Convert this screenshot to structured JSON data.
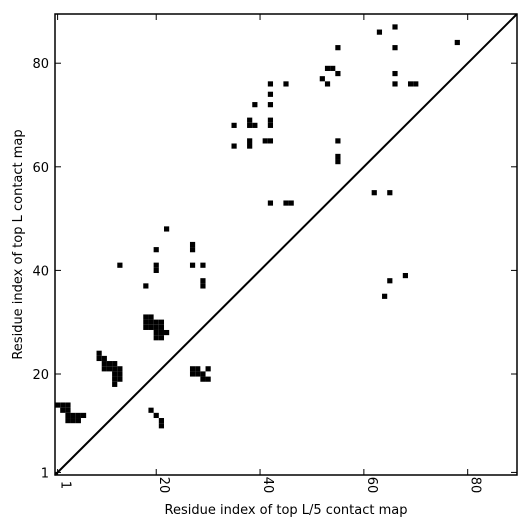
{
  "chart_data": {
    "type": "scatter",
    "xlabel": "Residue index of top L/5 contact map",
    "ylabel": "Residue index of top L contact map",
    "xlim": [
      0.5,
      89.5
    ],
    "ylim": [
      0.5,
      89.5
    ],
    "x_ticks": [
      1,
      20,
      40,
      60,
      80
    ],
    "y_ticks": [
      1,
      20,
      40,
      60,
      80
    ],
    "x_tick_labels": [
      "1",
      "20",
      "40",
      "60",
      "80"
    ],
    "y_tick_labels": [
      "1",
      "20",
      "40",
      "60",
      "80"
    ],
    "grid": false,
    "diagonal": true,
    "marker_color": "#000000",
    "upper_triangle_points": [
      [
        63,
        86
      ],
      [
        66,
        87
      ],
      [
        66,
        83
      ],
      [
        55,
        83
      ],
      [
        78,
        84
      ],
      [
        53,
        79
      ],
      [
        54,
        79
      ],
      [
        55,
        78
      ],
      [
        66,
        78
      ],
      [
        52,
        77
      ],
      [
        42,
        76
      ],
      [
        45,
        76
      ],
      [
        53,
        76
      ],
      [
        66,
        76
      ],
      [
        69,
        76
      ],
      [
        70,
        76
      ],
      [
        42,
        74
      ],
      [
        39,
        72
      ],
      [
        42,
        72
      ],
      [
        38,
        69
      ],
      [
        42,
        69
      ],
      [
        35,
        68
      ],
      [
        38,
        68
      ],
      [
        39,
        68
      ],
      [
        42,
        68
      ],
      [
        38,
        65
      ],
      [
        41,
        65
      ],
      [
        42,
        65
      ],
      [
        55,
        65
      ],
      [
        35,
        64
      ],
      [
        38,
        64
      ],
      [
        55,
        62
      ],
      [
        55,
        61
      ],
      [
        62,
        55
      ],
      [
        65,
        55
      ],
      [
        42,
        53
      ],
      [
        45,
        53
      ],
      [
        46,
        53
      ]
    ],
    "lower_triangle_points": [
      [
        22,
        48
      ],
      [
        20,
        44
      ],
      [
        27,
        45
      ],
      [
        27,
        44
      ],
      [
        13,
        41
      ],
      [
        20,
        41
      ],
      [
        27,
        41
      ],
      [
        29,
        41
      ],
      [
        20,
        40
      ],
      [
        68,
        39
      ],
      [
        29,
        38
      ],
      [
        65,
        38
      ],
      [
        18,
        37
      ],
      [
        29,
        37
      ],
      [
        64,
        35
      ],
      [
        18,
        31
      ],
      [
        19,
        31
      ],
      [
        18,
        30
      ],
      [
        19,
        30
      ],
      [
        20,
        30
      ],
      [
        21,
        30
      ],
      [
        18,
        29
      ],
      [
        19,
        29
      ],
      [
        20,
        29
      ],
      [
        21,
        29
      ],
      [
        20,
        28
      ],
      [
        21,
        28
      ],
      [
        22,
        28
      ],
      [
        20,
        27
      ],
      [
        21,
        27
      ],
      [
        9,
        24
      ],
      [
        9,
        23
      ],
      [
        10,
        23
      ],
      [
        10,
        22
      ],
      [
        11,
        22
      ],
      [
        12,
        22
      ],
      [
        10,
        21
      ],
      [
        11,
        21
      ],
      [
        12,
        21
      ],
      [
        13,
        21
      ],
      [
        27,
        21
      ],
      [
        28,
        21
      ],
      [
        30,
        21
      ],
      [
        12,
        20
      ],
      [
        13,
        20
      ],
      [
        27,
        20
      ],
      [
        28,
        20
      ],
      [
        29,
        20
      ],
      [
        12,
        19
      ],
      [
        13,
        19
      ],
      [
        29,
        19
      ],
      [
        30,
        19
      ],
      [
        12,
        18
      ],
      [
        1,
        14
      ],
      [
        2,
        14
      ],
      [
        3,
        14
      ],
      [
        2,
        13
      ],
      [
        3,
        13
      ],
      [
        19,
        13
      ],
      [
        3,
        12
      ],
      [
        4,
        12
      ],
      [
        5,
        12
      ],
      [
        6,
        12
      ],
      [
        20,
        12
      ],
      [
        3,
        11
      ],
      [
        4,
        11
      ],
      [
        5,
        11
      ],
      [
        21,
        11
      ],
      [
        21,
        10
      ]
    ]
  }
}
